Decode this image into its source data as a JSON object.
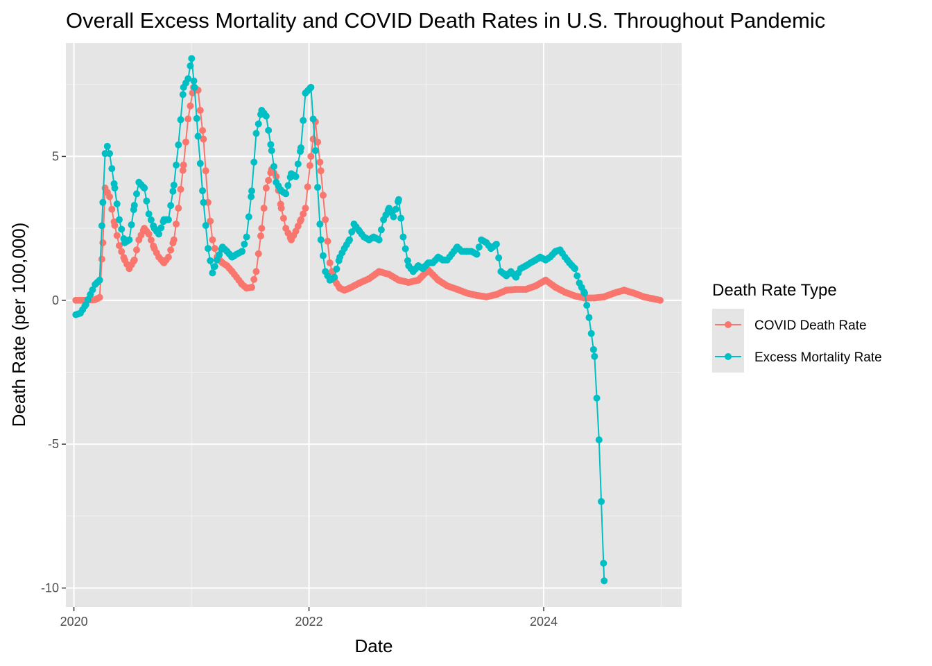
{
  "chart_data": {
    "type": "line",
    "title": "Overall Excess Mortality and COVID Death Rates in U.S. Throughout Pandemic",
    "xlabel": "Date",
    "ylabel": "Death Rate (per 100,000)",
    "x_ticks": [
      "2020",
      "2022",
      "2024"
    ],
    "y_ticks": [
      "-10",
      "-5",
      "0",
      "5"
    ],
    "xlim": [
      "2019-12-07",
      "2025-03-05"
    ],
    "ylim": [
      -10.66,
      8.94
    ],
    "grid": true,
    "legend_position": "right",
    "legend_title": "Death Rate Type",
    "panel_background": "#e5e5e5",
    "series": [
      {
        "name": "COVID Death Rate",
        "color": "#F8766D",
        "points": [
          [
            "2020-01-07",
            0.0
          ],
          [
            "2020-02-07",
            0.0
          ],
          [
            "2020-03-07",
            0.02
          ],
          [
            "2020-03-21",
            0.1
          ],
          [
            "2020-03-31",
            2.0
          ],
          [
            "2020-04-07",
            3.9
          ],
          [
            "2020-04-21",
            3.6
          ],
          [
            "2020-05-07",
            2.6
          ],
          [
            "2020-05-21",
            1.9
          ],
          [
            "2020-06-07",
            1.4
          ],
          [
            "2020-06-21",
            1.1
          ],
          [
            "2020-07-07",
            1.4
          ],
          [
            "2020-07-21",
            2.1
          ],
          [
            "2020-08-07",
            2.5
          ],
          [
            "2020-08-21",
            2.3
          ],
          [
            "2020-09-07",
            1.8
          ],
          [
            "2020-09-21",
            1.5
          ],
          [
            "2020-10-07",
            1.3
          ],
          [
            "2020-10-21",
            1.5
          ],
          [
            "2020-11-07",
            2.1
          ],
          [
            "2020-11-21",
            3.2
          ],
          [
            "2020-12-07",
            4.7
          ],
          [
            "2020-12-21",
            6.3
          ],
          [
            "2021-01-07",
            7.4
          ],
          [
            "2021-01-21",
            7.3
          ],
          [
            "2021-02-07",
            5.6
          ],
          [
            "2021-02-21",
            3.4
          ],
          [
            "2021-03-07",
            2.1
          ],
          [
            "2021-03-21",
            1.5
          ],
          [
            "2021-04-07",
            1.3
          ],
          [
            "2021-04-21",
            1.2
          ],
          [
            "2021-05-07",
            1.0
          ],
          [
            "2021-05-21",
            0.8
          ],
          [
            "2021-06-07",
            0.55
          ],
          [
            "2021-06-21",
            0.42
          ],
          [
            "2021-07-07",
            0.45
          ],
          [
            "2021-07-21",
            1.0
          ],
          [
            "2021-08-07",
            2.5
          ],
          [
            "2021-08-21",
            3.9
          ],
          [
            "2021-09-07",
            4.55
          ],
          [
            "2021-09-21",
            4.3
          ],
          [
            "2021-10-07",
            3.2
          ],
          [
            "2021-10-21",
            2.5
          ],
          [
            "2021-11-07",
            2.1
          ],
          [
            "2021-11-21",
            2.4
          ],
          [
            "2021-12-07",
            2.8
          ],
          [
            "2021-12-21",
            3.2
          ],
          [
            "2022-01-07",
            5.0
          ],
          [
            "2022-01-21",
            6.2
          ],
          [
            "2022-02-07",
            4.5
          ],
          [
            "2022-02-21",
            2.8
          ],
          [
            "2022-03-07",
            1.3
          ],
          [
            "2022-03-21",
            0.7
          ],
          [
            "2022-04-07",
            0.42
          ],
          [
            "2022-04-21",
            0.35
          ],
          [
            "2022-05-07",
            0.42
          ],
          [
            "2022-06-07",
            0.6
          ],
          [
            "2022-07-07",
            0.75
          ],
          [
            "2022-08-07",
            1.0
          ],
          [
            "2022-09-07",
            0.9
          ],
          [
            "2022-10-07",
            0.7
          ],
          [
            "2022-11-07",
            0.62
          ],
          [
            "2022-12-07",
            0.7
          ],
          [
            "2023-01-07",
            1.05
          ],
          [
            "2023-02-07",
            0.7
          ],
          [
            "2023-03-07",
            0.5
          ],
          [
            "2023-04-07",
            0.38
          ],
          [
            "2023-05-07",
            0.25
          ],
          [
            "2023-06-07",
            0.17
          ],
          [
            "2023-07-07",
            0.12
          ],
          [
            "2023-08-07",
            0.2
          ],
          [
            "2023-09-07",
            0.35
          ],
          [
            "2023-10-07",
            0.38
          ],
          [
            "2023-11-07",
            0.38
          ],
          [
            "2023-12-07",
            0.5
          ],
          [
            "2024-01-07",
            0.7
          ],
          [
            "2024-02-07",
            0.45
          ],
          [
            "2024-03-07",
            0.28
          ],
          [
            "2024-04-07",
            0.15
          ],
          [
            "2024-05-07",
            0.08
          ],
          [
            "2024-06-07",
            0.08
          ],
          [
            "2024-07-07",
            0.12
          ],
          [
            "2024-08-07",
            0.25
          ],
          [
            "2024-09-07",
            0.35
          ],
          [
            "2024-10-07",
            0.25
          ],
          [
            "2024-11-07",
            0.12
          ],
          [
            "2024-12-07",
            0.05
          ],
          [
            "2024-12-28",
            0.0
          ]
        ]
      },
      {
        "name": "Excess Mortality Rate",
        "color": "#00BFC4",
        "points": [
          [
            "2020-01-07",
            -0.5
          ],
          [
            "2020-01-21",
            -0.45
          ],
          [
            "2020-02-07",
            -0.15
          ],
          [
            "2020-02-21",
            0.2
          ],
          [
            "2020-03-07",
            0.55
          ],
          [
            "2020-03-21",
            0.7
          ],
          [
            "2020-03-31",
            3.4
          ],
          [
            "2020-04-07",
            5.1
          ],
          [
            "2020-04-14",
            5.35
          ],
          [
            "2020-04-21",
            5.1
          ],
          [
            "2020-05-07",
            3.9
          ],
          [
            "2020-05-21",
            2.8
          ],
          [
            "2020-06-07",
            2.0
          ],
          [
            "2020-06-21",
            2.1
          ],
          [
            "2020-07-07",
            3.3
          ],
          [
            "2020-07-21",
            4.1
          ],
          [
            "2020-08-07",
            3.9
          ],
          [
            "2020-08-21",
            3.0
          ],
          [
            "2020-09-07",
            2.5
          ],
          [
            "2020-09-21",
            2.3
          ],
          [
            "2020-10-07",
            2.8
          ],
          [
            "2020-10-21",
            2.8
          ],
          [
            "2020-11-07",
            4.0
          ],
          [
            "2020-11-21",
            5.4
          ],
          [
            "2020-12-07",
            7.4
          ],
          [
            "2020-12-21",
            7.7
          ],
          [
            "2021-01-01",
            8.4
          ],
          [
            "2021-01-10",
            7.4
          ],
          [
            "2021-01-21",
            5.7
          ],
          [
            "2021-02-07",
            3.4
          ],
          [
            "2021-02-21",
            1.8
          ],
          [
            "2021-03-07",
            0.95
          ],
          [
            "2021-03-21",
            1.4
          ],
          [
            "2021-04-07",
            1.85
          ],
          [
            "2021-04-21",
            1.7
          ],
          [
            "2021-05-07",
            1.5
          ],
          [
            "2021-05-21",
            1.6
          ],
          [
            "2021-06-07",
            1.7
          ],
          [
            "2021-06-21",
            2.2
          ],
          [
            "2021-07-07",
            3.8
          ],
          [
            "2021-07-21",
            5.8
          ],
          [
            "2021-08-07",
            6.6
          ],
          [
            "2021-08-21",
            6.4
          ],
          [
            "2021-09-07",
            5.2
          ],
          [
            "2021-09-21",
            4.1
          ],
          [
            "2021-10-07",
            3.8
          ],
          [
            "2021-10-21",
            3.7
          ],
          [
            "2021-11-07",
            4.4
          ],
          [
            "2021-11-21",
            4.3
          ],
          [
            "2021-12-07",
            5.3
          ],
          [
            "2021-12-21",
            7.2
          ],
          [
            "2022-01-07",
            7.4
          ],
          [
            "2022-01-21",
            5.2
          ],
          [
            "2022-02-07",
            2.1
          ],
          [
            "2022-02-21",
            1.0
          ],
          [
            "2022-03-07",
            0.7
          ],
          [
            "2022-03-21",
            0.8
          ],
          [
            "2022-04-07",
            1.5
          ],
          [
            "2022-04-21",
            1.8
          ],
          [
            "2022-05-07",
            2.1
          ],
          [
            "2022-05-21",
            2.65
          ],
          [
            "2022-06-07",
            2.4
          ],
          [
            "2022-06-21",
            2.2
          ],
          [
            "2022-07-07",
            2.1
          ],
          [
            "2022-07-21",
            2.2
          ],
          [
            "2022-08-07",
            2.1
          ],
          [
            "2022-08-21",
            2.8
          ],
          [
            "2022-09-07",
            3.2
          ],
          [
            "2022-09-21",
            2.9
          ],
          [
            "2022-10-07",
            3.5
          ],
          [
            "2022-10-21",
            2.2
          ],
          [
            "2022-11-07",
            1.2
          ],
          [
            "2022-11-21",
            1.0
          ],
          [
            "2022-12-07",
            1.2
          ],
          [
            "2022-12-21",
            1.1
          ],
          [
            "2023-01-07",
            1.3
          ],
          [
            "2023-01-21",
            1.3
          ],
          [
            "2023-02-07",
            1.5
          ],
          [
            "2023-02-21",
            1.4
          ],
          [
            "2023-03-07",
            1.4
          ],
          [
            "2023-03-21",
            1.6
          ],
          [
            "2023-04-07",
            1.85
          ],
          [
            "2023-04-21",
            1.7
          ],
          [
            "2023-05-07",
            1.7
          ],
          [
            "2023-05-21",
            1.7
          ],
          [
            "2023-06-07",
            1.6
          ],
          [
            "2023-06-21",
            2.1
          ],
          [
            "2023-07-07",
            2.0
          ],
          [
            "2023-07-21",
            1.8
          ],
          [
            "2023-08-07",
            1.95
          ],
          [
            "2023-08-21",
            1.0
          ],
          [
            "2023-09-07",
            0.85
          ],
          [
            "2023-09-21",
            1.0
          ],
          [
            "2023-10-07",
            0.8
          ],
          [
            "2023-10-21",
            1.1
          ],
          [
            "2023-11-07",
            1.2
          ],
          [
            "2023-11-21",
            1.3
          ],
          [
            "2023-12-07",
            1.4
          ],
          [
            "2023-12-21",
            1.5
          ],
          [
            "2024-01-07",
            1.4
          ],
          [
            "2024-01-21",
            1.5
          ],
          [
            "2024-02-07",
            1.7
          ],
          [
            "2024-02-21",
            1.75
          ],
          [
            "2024-03-07",
            1.5
          ],
          [
            "2024-03-21",
            1.3
          ],
          [
            "2024-04-07",
            1.1
          ],
          [
            "2024-04-21",
            0.6
          ],
          [
            "2024-05-07",
            0.25
          ],
          [
            "2024-05-21",
            -0.6
          ],
          [
            "2024-06-07",
            -1.95
          ],
          [
            "2024-06-21",
            -4.85
          ],
          [
            "2024-07-07",
            -9.75
          ]
        ]
      }
    ]
  }
}
